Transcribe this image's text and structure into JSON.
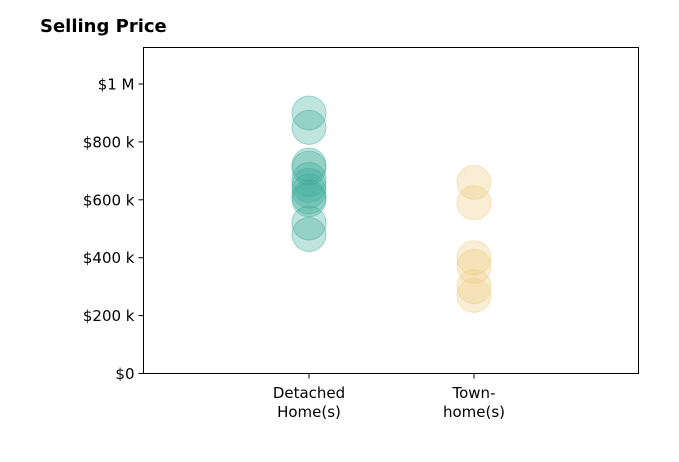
{
  "chart_data": {
    "type": "scatter",
    "title": "Selling Price",
    "xlabel": "",
    "ylabel": "",
    "categories": [
      {
        "lines": [
          "Detached",
          "Home(s)"
        ],
        "color": "#3aaa99"
      },
      {
        "lines": [
          "Town-",
          "home(s)"
        ],
        "color": "#eccb7b"
      }
    ],
    "ylim": [
      0,
      1000000
    ],
    "y_ticks": [
      {
        "value": 0,
        "label": "$0"
      },
      {
        "value": 200000,
        "label": "$200 k"
      },
      {
        "value": 400000,
        "label": "$400 k"
      },
      {
        "value": 600000,
        "label": "$600 k"
      },
      {
        "value": 800000,
        "label": "$800 k"
      },
      {
        "value": 1000000,
        "label": "$1 M"
      }
    ],
    "series": [
      {
        "category": 0,
        "values": [
          900000,
          850000,
          720000,
          710000,
          670000,
          650000,
          630000,
          610000,
          600000,
          520000,
          480000
        ]
      },
      {
        "category": 1,
        "values": [
          660000,
          590000,
          400000,
          370000,
          300000,
          270000
        ]
      }
    ],
    "grid": false,
    "legend": "none"
  }
}
